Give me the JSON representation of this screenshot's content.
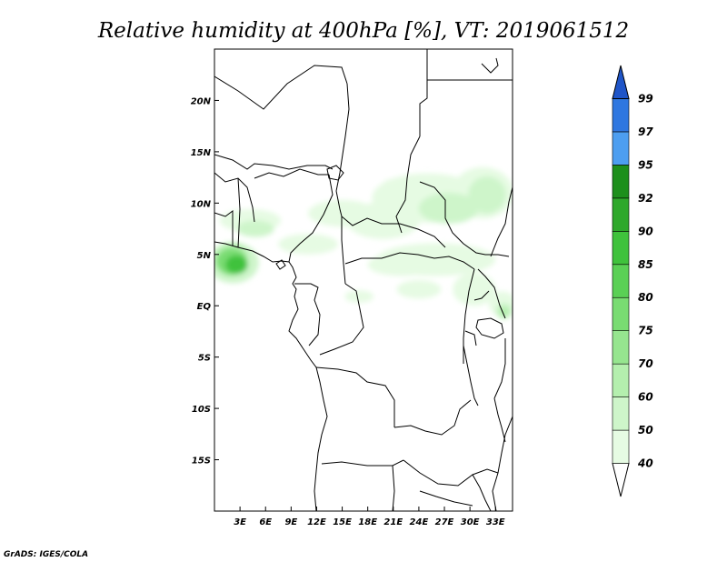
{
  "title": "Relative humidity at 400hPa [%], VT: 2019061512",
  "credit": "GrADS: IGES/COLA",
  "map": {
    "lon_range": [
      0,
      35
    ],
    "lat_range": [
      -20,
      25
    ],
    "lon_ticks": [
      {
        "value": 3,
        "label": "3E"
      },
      {
        "value": 6,
        "label": "6E"
      },
      {
        "value": 9,
        "label": "9E"
      },
      {
        "value": 12,
        "label": "12E"
      },
      {
        "value": 15,
        "label": "15E"
      },
      {
        "value": 18,
        "label": "18E"
      },
      {
        "value": 21,
        "label": "21E"
      },
      {
        "value": 24,
        "label": "24E"
      },
      {
        "value": 27,
        "label": "27E"
      },
      {
        "value": 30,
        "label": "30E"
      },
      {
        "value": 33,
        "label": "33E"
      }
    ],
    "lat_ticks": [
      {
        "value": 20,
        "label": "20N"
      },
      {
        "value": 15,
        "label": "15N"
      },
      {
        "value": 10,
        "label": "10N"
      },
      {
        "value": 5,
        "label": "5N"
      },
      {
        "value": 0,
        "label": "EQ"
      },
      {
        "value": -5,
        "label": "5S"
      },
      {
        "value": -10,
        "label": "10S"
      },
      {
        "value": -15,
        "label": "15S"
      }
    ]
  },
  "colorbar": {
    "levels": [
      "40",
      "50",
      "60",
      "70",
      "75",
      "80",
      "85",
      "90",
      "92",
      "95",
      "97",
      "99"
    ],
    "colors": [
      "#ffffff",
      "#e6fbe3",
      "#cef5ca",
      "#b4efae",
      "#96e58f",
      "#79dc72",
      "#5ad055",
      "#3fc23c",
      "#2ea82b",
      "#1d8f1c",
      "#4d9ef0",
      "#2f77e0",
      "#1f55c8"
    ]
  },
  "humidity_areas": [
    {
      "level": 40,
      "lon": 4.2,
      "lat": 8.3,
      "rlon": 3.6,
      "rlat": 1.1
    },
    {
      "level": 40,
      "lon": 11.0,
      "lat": 6.0,
      "rlon": 3.5,
      "rlat": 1.0
    },
    {
      "level": 40,
      "lon": 15.0,
      "lat": 9.0,
      "rlon": 4.0,
      "rlat": 1.3
    },
    {
      "level": 40,
      "lon": 19.8,
      "lat": 8.3,
      "rlon": 4.3,
      "rlat": 1.8
    },
    {
      "level": 40,
      "lon": 25.0,
      "lat": 10.5,
      "rlon": 6.5,
      "rlat": 2.4
    },
    {
      "level": 40,
      "lon": 31.5,
      "lat": 11.0,
      "rlon": 3.6,
      "rlat": 2.5
    },
    {
      "level": 40,
      "lon": 26.0,
      "lat": 4.5,
      "rlon": 7.0,
      "rlat": 1.6
    },
    {
      "level": 40,
      "lon": 22.0,
      "lat": 4.0,
      "rlon": 4.0,
      "rlat": 1.1
    },
    {
      "level": 40,
      "lon": 30.5,
      "lat": 1.6,
      "rlon": 2.5,
      "rlat": 1.6
    },
    {
      "level": 40,
      "lon": 33.8,
      "lat": 0.2,
      "rlon": 1.6,
      "rlat": 1.2
    },
    {
      "level": 40,
      "lon": 24.0,
      "lat": 1.6,
      "rlon": 2.6,
      "rlat": 0.9
    },
    {
      "level": 40,
      "lon": 17.0,
      "lat": 0.9,
      "rlon": 1.7,
      "rlat": 0.6
    },
    {
      "level": 40,
      "lon": 21.2,
      "lat": 11.5,
      "rlon": 1.6,
      "rlat": 0.9
    },
    {
      "level": 50,
      "lon": 2.2,
      "lat": 4.2,
      "rlon": 3.0,
      "rlat": 2.0
    },
    {
      "level": 50,
      "lon": 4.8,
      "lat": 7.5,
      "rlon": 2.2,
      "rlat": 0.8
    },
    {
      "level": 50,
      "lon": 27.5,
      "lat": 9.5,
      "rlon": 3.5,
      "rlat": 1.5
    },
    {
      "level": 50,
      "lon": 32.0,
      "lat": 10.8,
      "rlon": 2.2,
      "rlat": 1.8
    },
    {
      "level": 50,
      "lon": 34.0,
      "lat": -0.5,
      "rlon": 1.0,
      "rlat": 0.8
    },
    {
      "level": 60,
      "lon": 2.0,
      "lat": 4.5,
      "rlon": 2.0,
      "rlat": 1.6
    },
    {
      "level": 60,
      "lon": 34.0,
      "lat": -0.6,
      "rlon": 0.6,
      "rlat": 0.5
    },
    {
      "level": 75,
      "lon": 2.0,
      "lat": 4.3,
      "rlon": 1.8,
      "rlat": 1.3
    },
    {
      "level": 85,
      "lon": 2.6,
      "lat": 4.0,
      "rlon": 1.3,
      "rlat": 0.9
    }
  ]
}
